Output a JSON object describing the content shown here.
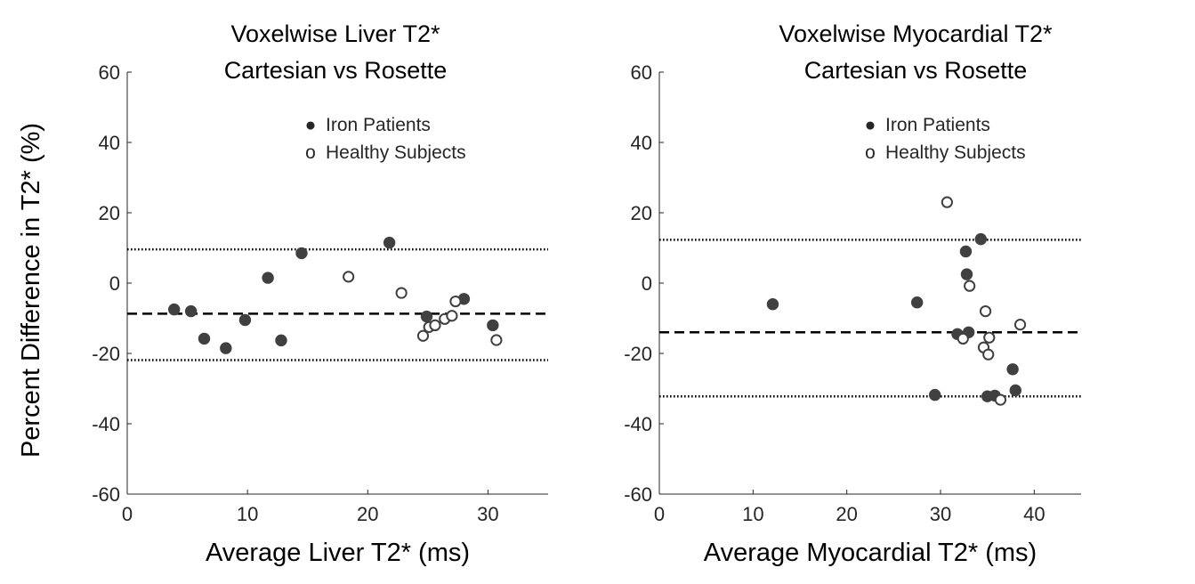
{
  "figure": {
    "ylabel": "Percent Difference in T2* (%)"
  },
  "chart_data": [
    {
      "type": "scatter",
      "title_line1": "Voxelwise Liver T2*",
      "title_line2": "Cartesian vs Rosette",
      "xlabel": "Average Liver T2* (ms)",
      "ylabel": "Percent Difference in T2* (%)",
      "xlim": [
        0,
        35
      ],
      "ylim": [
        -60,
        60
      ],
      "xticks": [
        0,
        10,
        20,
        30
      ],
      "xtick_labels": [
        "0",
        "10",
        "20",
        "30"
      ],
      "yticks": [
        60,
        40,
        20,
        0,
        -20,
        -40,
        -60
      ],
      "ytick_labels": [
        "60",
        "40",
        "20",
        "0",
        "-20",
        "-40",
        "-60"
      ],
      "legend": [
        {
          "marker": "●",
          "label": "Iron Patients"
        },
        {
          "marker": "o",
          "label": "Healthy Subjects"
        }
      ],
      "series": [
        {
          "name": "Iron Patients",
          "filled": true,
          "points": [
            [
              3.9,
              -7.5
            ],
            [
              5.3,
              -8.0
            ],
            [
              6.4,
              -15.8
            ],
            [
              8.2,
              -18.5
            ],
            [
              9.8,
              -10.5
            ],
            [
              11.7,
              1.5
            ],
            [
              12.8,
              -16.3
            ],
            [
              14.5,
              8.5
            ],
            [
              21.8,
              11.5
            ],
            [
              24.9,
              -9.5
            ],
            [
              28.0,
              -4.5
            ],
            [
              30.4,
              -12.0
            ]
          ]
        },
        {
          "name": "Healthy Subjects",
          "filled": false,
          "points": [
            [
              18.4,
              1.8
            ],
            [
              22.8,
              -2.8
            ],
            [
              24.6,
              -15.0
            ],
            [
              25.1,
              -12.5
            ],
            [
              25.6,
              -12.0
            ],
            [
              26.4,
              -10.2
            ],
            [
              27.0,
              -9.3
            ],
            [
              27.3,
              -5.2
            ],
            [
              30.7,
              -16.2
            ]
          ]
        }
      ],
      "lines": [
        {
          "name": "mean",
          "style": "dashed",
          "y": -8.7
        },
        {
          "name": "upper limit of agreement",
          "style": "dotted",
          "y": 9.6
        },
        {
          "name": "lower limit of agreement",
          "style": "dotted",
          "y": -21.9
        }
      ]
    },
    {
      "type": "scatter",
      "title_line1": "Voxelwise Myocardial T2*",
      "title_line2": "Cartesian vs Rosette",
      "xlabel": "Average Myocardial T2* (ms)",
      "ylabel": "Percent Difference in T2* (%)",
      "xlim": [
        0,
        45
      ],
      "ylim": [
        -60,
        60
      ],
      "xticks": [
        0,
        10,
        20,
        30,
        40
      ],
      "xtick_labels": [
        "0",
        "10",
        "20",
        "30",
        "40"
      ],
      "yticks": [
        60,
        40,
        20,
        0,
        -20,
        -40,
        -60
      ],
      "ytick_labels": [
        "60",
        "40",
        "20",
        "0",
        "-20",
        "-40",
        "-60"
      ],
      "legend": [
        {
          "marker": "●",
          "label": "Iron Patients"
        },
        {
          "marker": "o",
          "label": "Healthy Subjects"
        }
      ],
      "series": [
        {
          "name": "Iron Patients",
          "filled": true,
          "points": [
            [
              12.1,
              -6.0
            ],
            [
              27.5,
              -5.5
            ],
            [
              29.4,
              -31.8
            ],
            [
              31.8,
              -14.5
            ],
            [
              32.7,
              9.0
            ],
            [
              32.8,
              2.5
            ],
            [
              33.0,
              -14.0
            ],
            [
              34.3,
              12.5
            ],
            [
              35.0,
              -32.2
            ],
            [
              35.8,
              -32.0
            ],
            [
              37.7,
              -24.5
            ],
            [
              38.0,
              -30.5
            ]
          ]
        },
        {
          "name": "Healthy Subjects",
          "filled": false,
          "points": [
            [
              30.7,
              23.0
            ],
            [
              32.4,
              -15.8
            ],
            [
              33.1,
              -0.8
            ],
            [
              34.6,
              -18.3
            ],
            [
              34.8,
              -8.0
            ],
            [
              35.1,
              -20.3
            ],
            [
              35.2,
              -15.5
            ],
            [
              36.4,
              -33.2
            ],
            [
              38.5,
              -11.8
            ]
          ]
        }
      ],
      "lines": [
        {
          "name": "mean",
          "style": "dashed",
          "y": -14.0
        },
        {
          "name": "upper limit of agreement",
          "style": "dotted",
          "y": 12.3
        },
        {
          "name": "lower limit of agreement",
          "style": "dotted",
          "y": -32.2
        }
      ]
    }
  ]
}
